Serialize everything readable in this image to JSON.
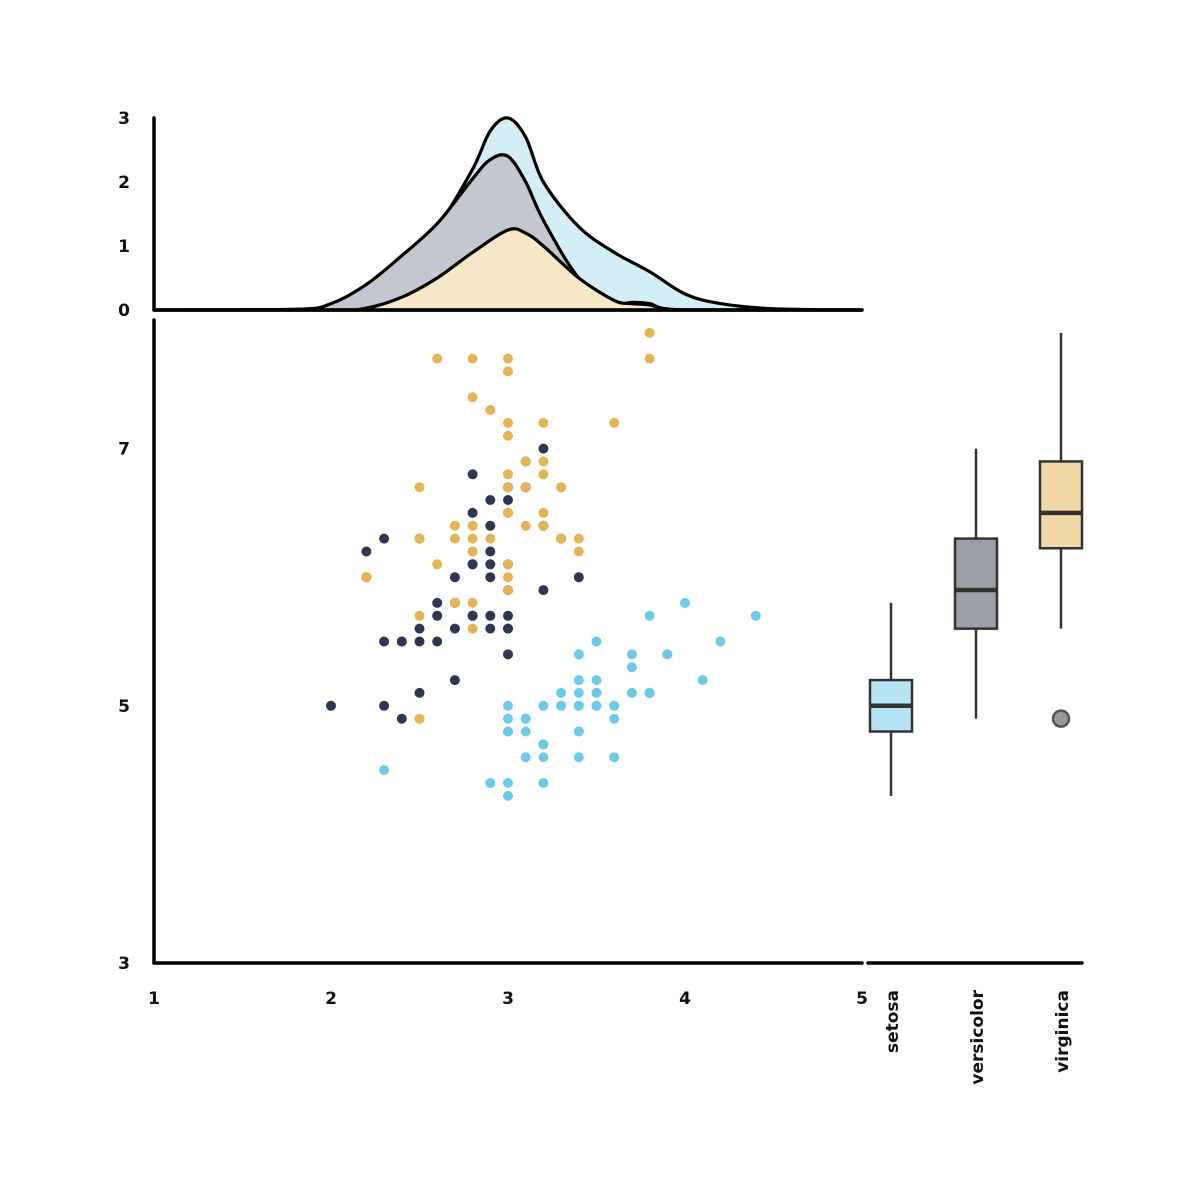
{
  "chart_data": {
    "type": "scatter",
    "colors": {
      "setosa": "#6dcbe8",
      "versicolor": "#2e3650",
      "virginica": "#e3b557"
    },
    "marginal_colors": {
      "setosa": "#d4eef7",
      "versicolor": "#c4c7cf",
      "virginica": "#f6e8c8"
    },
    "box_colors": {
      "setosa": "#b6e4f4",
      "versicolor": "#9b9fa8",
      "virginica": "#f0d9a6"
    },
    "scatter": {
      "xlim": [
        1,
        5
      ],
      "ylim": [
        3,
        8
      ],
      "x_ticks": [
        "1",
        "2",
        "3",
        "4",
        "5"
      ],
      "y_ticks": [
        "3",
        "5",
        "7"
      ],
      "series": [
        {
          "key": "setosa",
          "points": [
            [
              3.5,
              5.1
            ],
            [
              3.0,
              4.9
            ],
            [
              3.2,
              4.7
            ],
            [
              3.1,
              4.6
            ],
            [
              3.6,
              5.0
            ],
            [
              3.9,
              5.4
            ],
            [
              3.4,
              4.6
            ],
            [
              3.4,
              5.0
            ],
            [
              2.9,
              4.4
            ],
            [
              3.1,
              4.9
            ],
            [
              3.7,
              5.4
            ],
            [
              3.4,
              4.8
            ],
            [
              3.0,
              4.8
            ],
            [
              3.0,
              4.3
            ],
            [
              4.0,
              5.8
            ],
            [
              4.4,
              5.7
            ],
            [
              3.9,
              5.4
            ],
            [
              3.5,
              5.1
            ],
            [
              3.8,
              5.7
            ],
            [
              3.8,
              5.1
            ],
            [
              3.4,
              5.4
            ],
            [
              3.7,
              5.1
            ],
            [
              3.6,
              4.6
            ],
            [
              3.3,
              5.1
            ],
            [
              3.4,
              4.8
            ],
            [
              3.0,
              5.0
            ],
            [
              3.4,
              5.0
            ],
            [
              3.5,
              5.2
            ],
            [
              3.4,
              5.2
            ],
            [
              3.2,
              4.7
            ],
            [
              3.1,
              4.8
            ],
            [
              3.4,
              5.4
            ],
            [
              4.1,
              5.2
            ],
            [
              4.2,
              5.5
            ],
            [
              3.1,
              4.9
            ],
            [
              3.2,
              5.0
            ],
            [
              3.5,
              5.5
            ],
            [
              3.6,
              4.9
            ],
            [
              3.0,
              4.4
            ],
            [
              3.4,
              5.1
            ],
            [
              3.5,
              5.0
            ],
            [
              2.3,
              4.5
            ],
            [
              3.2,
              4.4
            ],
            [
              3.5,
              5.0
            ],
            [
              3.8,
              5.1
            ],
            [
              3.0,
              4.8
            ],
            [
              3.8,
              5.1
            ],
            [
              3.2,
              4.6
            ],
            [
              3.7,
              5.3
            ],
            [
              3.3,
              5.0
            ]
          ]
        },
        {
          "key": "versicolor",
          "points": [
            [
              3.2,
              7.0
            ],
            [
              3.2,
              6.4
            ],
            [
              3.1,
              6.9
            ],
            [
              2.3,
              5.5
            ],
            [
              2.8,
              6.5
            ],
            [
              2.8,
              5.7
            ],
            [
              3.3,
              6.3
            ],
            [
              2.4,
              4.9
            ],
            [
              2.9,
              6.6
            ],
            [
              2.7,
              5.2
            ],
            [
              2.0,
              5.0
            ],
            [
              3.0,
              5.9
            ],
            [
              2.2,
              6.0
            ],
            [
              2.9,
              6.1
            ],
            [
              2.9,
              5.6
            ],
            [
              3.1,
              6.7
            ],
            [
              3.0,
              5.6
            ],
            [
              2.7,
              5.8
            ],
            [
              2.2,
              6.2
            ],
            [
              2.5,
              5.6
            ],
            [
              3.2,
              5.9
            ],
            [
              2.8,
              6.1
            ],
            [
              2.5,
              6.3
            ],
            [
              2.8,
              6.1
            ],
            [
              2.9,
              6.4
            ],
            [
              3.0,
              6.6
            ],
            [
              2.8,
              6.8
            ],
            [
              3.0,
              6.7
            ],
            [
              2.9,
              6.0
            ],
            [
              2.6,
              5.7
            ],
            [
              2.4,
              5.5
            ],
            [
              2.4,
              5.5
            ],
            [
              2.7,
              5.8
            ],
            [
              2.7,
              6.0
            ],
            [
              3.0,
              5.4
            ],
            [
              3.4,
              6.0
            ],
            [
              3.1,
              6.7
            ],
            [
              2.3,
              6.3
            ],
            [
              3.0,
              5.6
            ],
            [
              2.5,
              5.5
            ],
            [
              2.6,
              5.5
            ],
            [
              3.0,
              6.1
            ],
            [
              2.6,
              5.8
            ],
            [
              2.3,
              5.0
            ],
            [
              2.7,
              5.6
            ],
            [
              3.0,
              5.7
            ],
            [
              2.9,
              5.7
            ],
            [
              2.9,
              6.2
            ],
            [
              2.5,
              5.1
            ],
            [
              2.8,
              5.7
            ]
          ]
        },
        {
          "key": "virginica",
          "points": [
            [
              3.3,
              6.3
            ],
            [
              2.7,
              5.8
            ],
            [
              3.0,
              7.1
            ],
            [
              2.9,
              6.3
            ],
            [
              3.0,
              6.5
            ],
            [
              3.0,
              7.6
            ],
            [
              2.5,
              4.9
            ],
            [
              2.9,
              7.3
            ],
            [
              2.5,
              6.7
            ],
            [
              3.6,
              7.2
            ],
            [
              3.2,
              6.5
            ],
            [
              2.7,
              6.4
            ],
            [
              3.0,
              6.8
            ],
            [
              2.5,
              5.7
            ],
            [
              2.8,
              5.8
            ],
            [
              3.2,
              6.4
            ],
            [
              3.0,
              6.5
            ],
            [
              3.8,
              7.7
            ],
            [
              2.6,
              7.7
            ],
            [
              2.2,
              6.0
            ],
            [
              3.2,
              6.9
            ],
            [
              2.8,
              5.6
            ],
            [
              2.8,
              7.7
            ],
            [
              2.7,
              6.3
            ],
            [
              3.3,
              6.7
            ],
            [
              3.2,
              7.2
            ],
            [
              2.8,
              6.2
            ],
            [
              3.0,
              6.1
            ],
            [
              2.8,
              6.4
            ],
            [
              3.0,
              7.2
            ],
            [
              2.8,
              7.4
            ],
            [
              3.8,
              7.9
            ],
            [
              2.8,
              6.4
            ],
            [
              2.8,
              6.3
            ],
            [
              2.6,
              6.1
            ],
            [
              3.0,
              7.7
            ],
            [
              3.4,
              6.3
            ],
            [
              3.1,
              6.4
            ],
            [
              3.0,
              6.0
            ],
            [
              3.1,
              6.9
            ],
            [
              3.1,
              6.7
            ],
            [
              3.1,
              6.9
            ],
            [
              2.7,
              5.8
            ],
            [
              3.2,
              6.8
            ],
            [
              3.3,
              6.7
            ],
            [
              3.0,
              6.7
            ],
            [
              2.5,
              6.3
            ],
            [
              3.0,
              6.5
            ],
            [
              3.4,
              6.2
            ],
            [
              3.0,
              5.9
            ]
          ]
        }
      ]
    },
    "marginal": {
      "type": "area",
      "ylim": [
        0,
        3
      ],
      "y_ticks": [
        "0",
        "1",
        "2",
        "3"
      ],
      "series": [
        {
          "key": "setosa",
          "x": [
            1.0,
            1.8,
            2.0,
            2.2,
            2.4,
            2.6,
            2.8,
            2.9,
            3.0,
            3.1,
            3.2,
            3.4,
            3.6,
            3.8,
            4.0,
            4.2,
            4.5,
            5.0
          ],
          "density": [
            0,
            0.01,
            0.08,
            0.35,
            0.8,
            1.3,
            2.2,
            2.8,
            3.0,
            2.7,
            2.0,
            1.3,
            0.9,
            0.6,
            0.25,
            0.1,
            0.02,
            0
          ]
        },
        {
          "key": "versicolor",
          "x": [
            1.0,
            1.8,
            2.0,
            2.2,
            2.4,
            2.6,
            2.8,
            2.9,
            3.0,
            3.1,
            3.2,
            3.4,
            3.6,
            3.7,
            3.8,
            4.0,
            5.0
          ],
          "density": [
            0,
            0.01,
            0.1,
            0.4,
            0.85,
            1.35,
            2.05,
            2.35,
            2.4,
            2.0,
            1.4,
            0.5,
            0.12,
            0.12,
            0.1,
            0,
            0
          ]
        },
        {
          "key": "virginica",
          "x": [
            1.0,
            2.0,
            2.2,
            2.4,
            2.6,
            2.8,
            3.0,
            3.1,
            3.2,
            3.4,
            3.6,
            3.7,
            3.8,
            4.0,
            5.0
          ],
          "density": [
            0,
            0,
            0.03,
            0.2,
            0.5,
            0.9,
            1.25,
            1.2,
            1.0,
            0.5,
            0.15,
            0.1,
            0.08,
            0,
            0
          ]
        }
      ]
    },
    "box": {
      "type": "box",
      "categories": [
        "setosa",
        "versicolor",
        "virginica"
      ],
      "stats": [
        {
          "key": "setosa",
          "min": 4.3,
          "q1": 4.8,
          "median": 5.0,
          "q3": 5.2,
          "max": 5.8,
          "outliers": []
        },
        {
          "key": "versicolor",
          "min": 4.9,
          "q1": 5.6,
          "median": 5.9,
          "q3": 6.3,
          "max": 7.0,
          "outliers": []
        },
        {
          "key": "virginica",
          "min": 5.6,
          "q1": 6.225,
          "median": 6.5,
          "q3": 6.9,
          "max": 7.9,
          "outliers": [
            4.9
          ]
        }
      ]
    }
  }
}
